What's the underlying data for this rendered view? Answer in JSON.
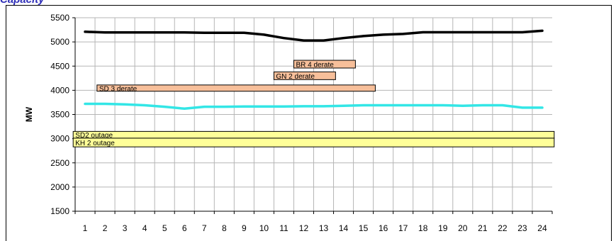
{
  "title": "Capacity",
  "chart_data": {
    "type": "line",
    "title": "Capacity",
    "ylabel": "MW",
    "xlabel": "",
    "categories": [
      "1",
      "2",
      "3",
      "4",
      "5",
      "6",
      "7",
      "8",
      "9",
      "10",
      "11",
      "12",
      "13",
      "14",
      "15",
      "16",
      "17",
      "18",
      "19",
      "20",
      "21",
      "22",
      "23",
      "24"
    ],
    "ylim": [
      1500,
      5500
    ],
    "yticks": [
      1500,
      2000,
      2500,
      3000,
      3500,
      4000,
      4500,
      5000,
      5500
    ],
    "grid": true,
    "series": [
      {
        "color": "#000000",
        "values": [
          5210,
          5195,
          5195,
          5195,
          5195,
          5195,
          5190,
          5190,
          5190,
          5150,
          5080,
          5030,
          5030,
          5080,
          5120,
          5150,
          5165,
          5200,
          5200,
          5200,
          5200,
          5200,
          5200,
          5230
        ]
      },
      {
        "color": "#33e6e6",
        "values": [
          3720,
          3720,
          3710,
          3690,
          3660,
          3620,
          3660,
          3660,
          3665,
          3665,
          3665,
          3670,
          3670,
          3680,
          3690,
          3690,
          3690,
          3690,
          3690,
          3680,
          3690,
          3690,
          3640,
          3640
        ]
      }
    ],
    "annotations": [
      {
        "label": "BR 4 derate",
        "x_start": 11.5,
        "x_end": 14.6,
        "y_low": 4460,
        "y_high": 4620,
        "color": "#f7bf9a"
      },
      {
        "label": "GN 2  derate",
        "x_start": 10.5,
        "x_end": 13.6,
        "y_low": 4220,
        "y_high": 4380,
        "color": "#f7bf9a"
      },
      {
        "label": "SD 3 derate",
        "x_start": 1.6,
        "x_end": 15.6,
        "y_low": 3980,
        "y_high": 4110,
        "color": "#f7bf9a"
      },
      {
        "label": "SD2 outage",
        "x_start": 0.4,
        "x_end": 24.6,
        "y_low": 3010,
        "y_high": 3150,
        "color": "#ffff99"
      },
      {
        "label": "KH 2 outage",
        "x_start": 0.4,
        "x_end": 24.6,
        "y_low": 2830,
        "y_high": 3010,
        "color": "#ffff99"
      }
    ]
  }
}
